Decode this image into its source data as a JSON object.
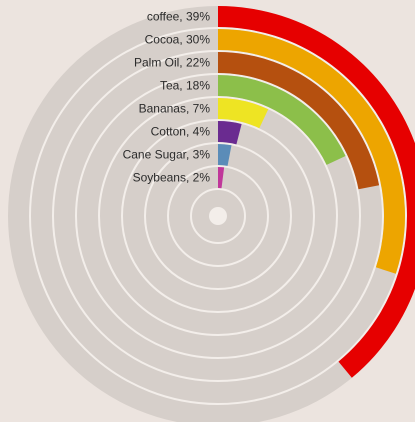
{
  "chart_data": {
    "type": "radial-bar",
    "title": "",
    "labels": [
      "coffee, 39%",
      "Cocoa, 30%",
      "Palm Oil, 22%",
      "Tea, 18%",
      "Bananas, 7%",
      "Cotton, 4%",
      "Cane Sugar, 3%",
      "Soybeans, 2%"
    ],
    "categories": [
      "coffee",
      "Cocoa",
      "Palm Oil",
      "Tea",
      "Bananas",
      "Cotton",
      "Cane Sugar",
      "Soybeans"
    ],
    "values": [
      39,
      30,
      22,
      18,
      7,
      4,
      3,
      2
    ],
    "max": 100,
    "colors": [
      "#e60000",
      "#eda500",
      "#b5500f",
      "#8cbf4a",
      "#eee423",
      "#6a2b90",
      "#5b8cb8",
      "#c0379a"
    ],
    "track_color": "#d6cfca",
    "background_color": "#ece4df"
  }
}
